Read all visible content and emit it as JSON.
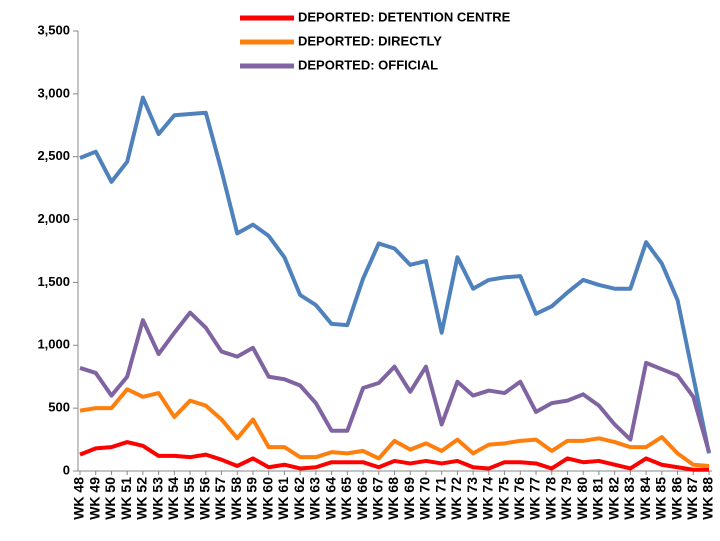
{
  "chart_data": {
    "type": "line",
    "categories": [
      "WK 48",
      "WK 49",
      "WK 50",
      "WK 51",
      "WK 52",
      "WK 53",
      "WK 54",
      "WK 55",
      "WK 56",
      "WK 57",
      "WK 58",
      "WK 59",
      "WK 60",
      "WK 61",
      "WK 62",
      "WK 63",
      "WK 64",
      "WK 65",
      "WK 66",
      "WK 67",
      "WK 68",
      "WK 69",
      "WK 70",
      "WK 71",
      "WK 72",
      "WK 73",
      "WK 74",
      "WK 75",
      "WK 76",
      "WK 77",
      "WK 78",
      "WK 79",
      "WK 80",
      "WK 81",
      "WK 82",
      "WK 83",
      "WK 84",
      "WK 85",
      "WK 86",
      "WK 87",
      "WK 88"
    ],
    "series": [
      {
        "color": "#4f81bd",
        "values": [
          2490,
          2540,
          2300,
          2460,
          2970,
          2680,
          2830,
          2840,
          2850,
          2390,
          1890,
          1960,
          1870,
          1700,
          1400,
          1320,
          1170,
          1160,
          1530,
          1810,
          1770,
          1640,
          1670,
          1100,
          1700,
          1450,
          1520,
          1540,
          1550,
          1250,
          1310,
          1420,
          1520,
          1480,
          1450,
          1450,
          1820,
          1650,
          1360,
          750,
          140
        ]
      },
      {
        "name": "DEPORTED: DETENTION CENTRE",
        "color": "#ff0000",
        "values": [
          130,
          180,
          190,
          230,
          200,
          120,
          120,
          110,
          130,
          90,
          40,
          100,
          30,
          50,
          20,
          30,
          70,
          70,
          70,
          30,
          80,
          60,
          80,
          60,
          80,
          30,
          20,
          70,
          70,
          60,
          20,
          100,
          70,
          80,
          50,
          20,
          100,
          50,
          30,
          10,
          10
        ]
      },
      {
        "name": "DEPORTED: DIRECTLY",
        "color": "#ff7f0e",
        "values": [
          480,
          500,
          500,
          650,
          590,
          620,
          430,
          560,
          520,
          410,
          260,
          410,
          190,
          190,
          110,
          110,
          150,
          140,
          160,
          100,
          240,
          170,
          220,
          160,
          250,
          140,
          210,
          220,
          240,
          250,
          160,
          240,
          240,
          260,
          230,
          190,
          190,
          270,
          140,
          50,
          40
        ]
      },
      {
        "name": "DEPORTED: OFFICIAL",
        "color": "#8064a2",
        "values": [
          820,
          780,
          600,
          750,
          1200,
          930,
          1100,
          1260,
          1140,
          950,
          910,
          980,
          750,
          730,
          680,
          540,
          320,
          320,
          660,
          700,
          830,
          630,
          830,
          370,
          710,
          600,
          640,
          620,
          710,
          470,
          540,
          560,
          610,
          520,
          370,
          250,
          860,
          810,
          760,
          590,
          150
        ]
      }
    ],
    "ylim": [
      0,
      3500
    ],
    "yticks": [
      0,
      500,
      {
        "value": 1000,
        "label": "1,000"
      },
      {
        "value": 1500,
        "label": "1,500"
      },
      {
        "value": 2000,
        "label": "2,000"
      },
      {
        "value": 2500,
        "label": "2,500"
      },
      {
        "value": 3000,
        "label": "3,000"
      },
      {
        "value": 3500,
        "label": "3,500"
      }
    ],
    "grid": false
  }
}
